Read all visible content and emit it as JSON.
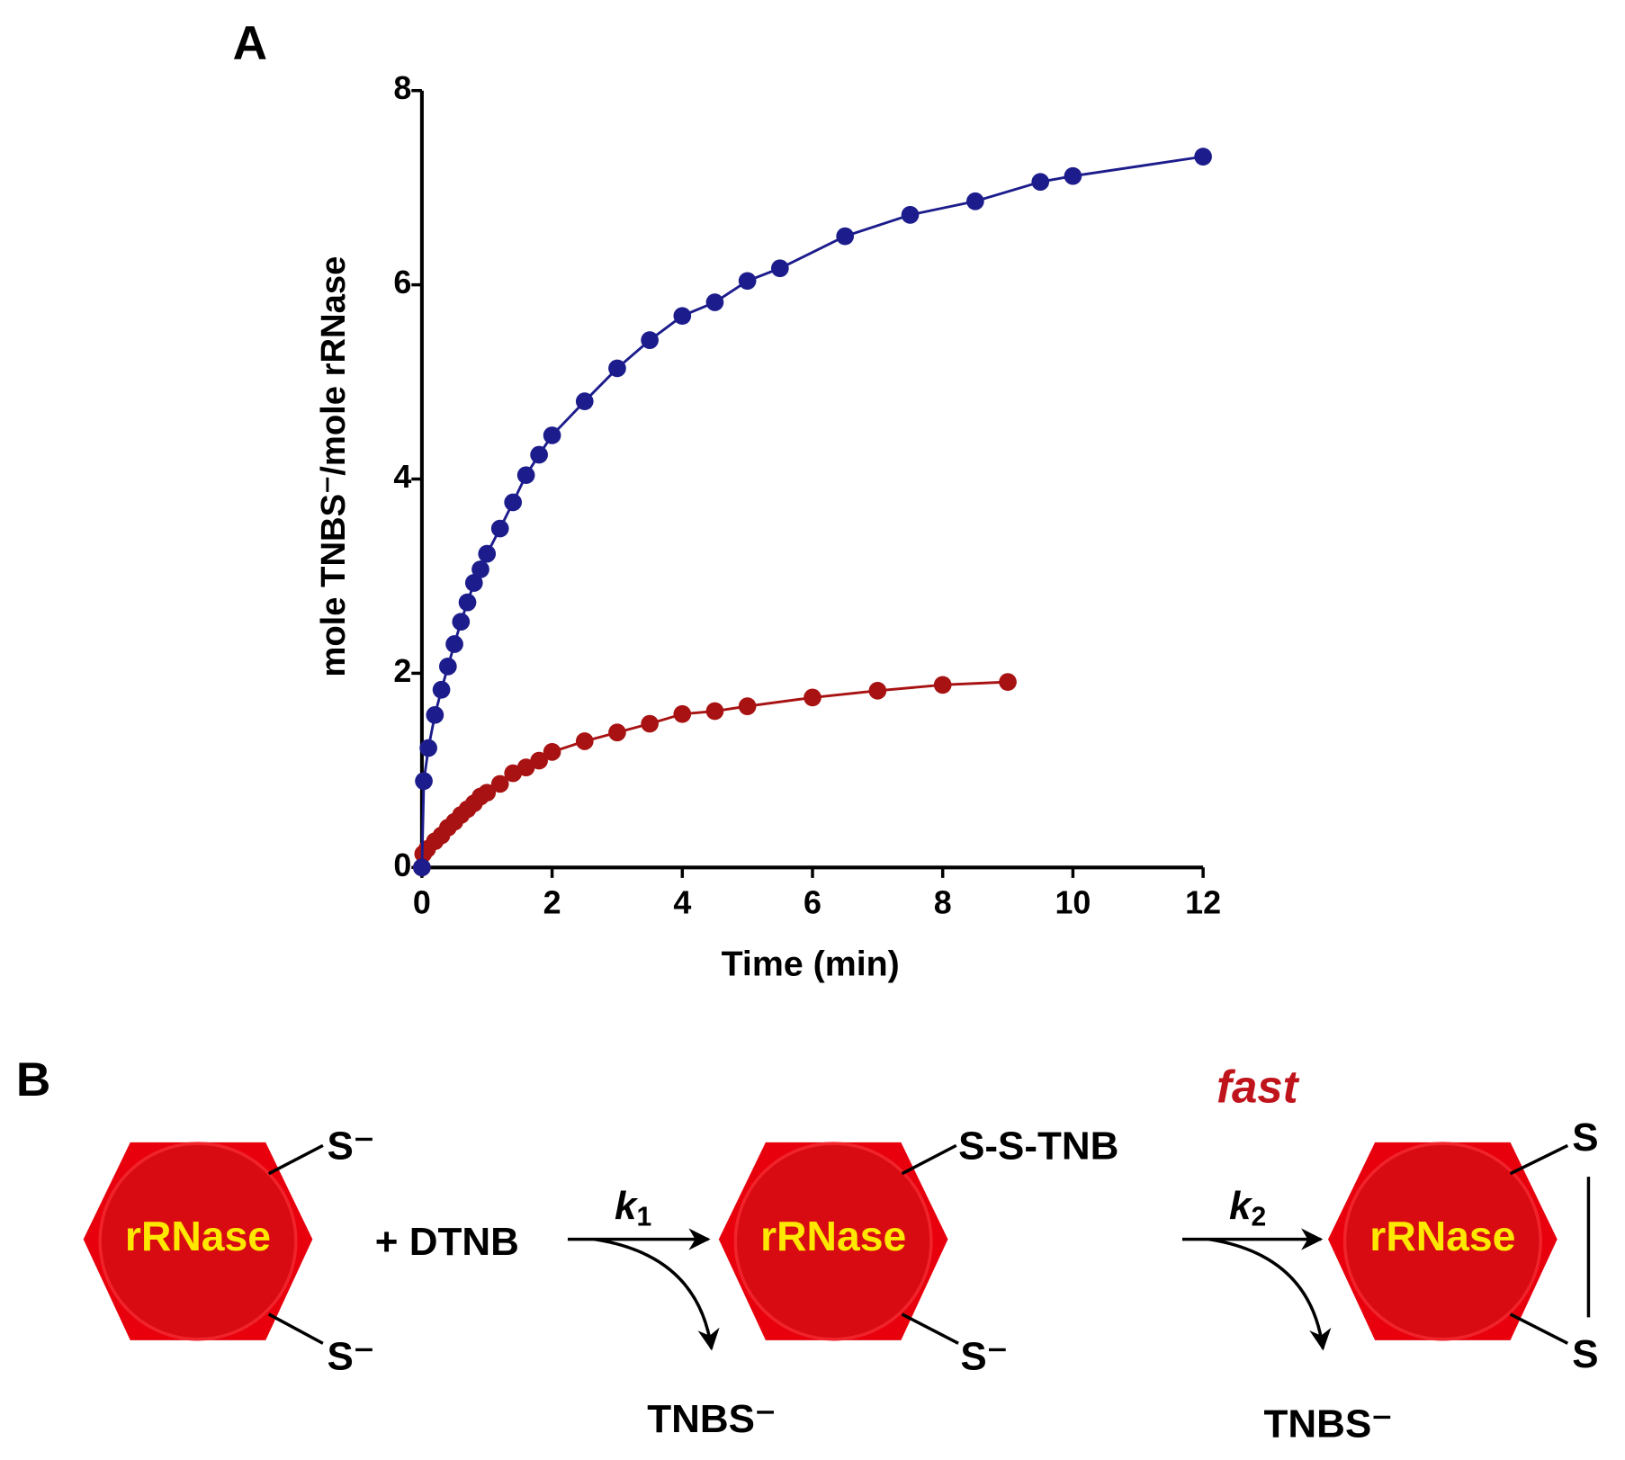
{
  "panel_a_label": "A",
  "chart_data": {
    "type": "line",
    "x_label": "Time (min)",
    "y_label": "mole TNBS⁻/mole rRNase",
    "xlim": [
      0,
      12
    ],
    "xticks": [
      0,
      2,
      4,
      6,
      8,
      10,
      12
    ],
    "ylim": [
      0,
      8
    ],
    "yticks": [
      0,
      2,
      4,
      6,
      8
    ],
    "series": [
      {
        "color": "#1c1c8c",
        "x": [
          0,
          0.03,
          0.1,
          0.2,
          0.3,
          0.4,
          0.5,
          0.6,
          0.7,
          0.8,
          0.9,
          1.0,
          1.2,
          1.4,
          1.6,
          1.8,
          2.0,
          2.5,
          3.0,
          3.5,
          4.0,
          4.5,
          5.0,
          5.5,
          6.5,
          7.5,
          8.5,
          9.5,
          10.0,
          12.0
        ],
        "values": [
          0,
          0.89,
          1.23,
          1.57,
          1.83,
          2.07,
          2.3,
          2.53,
          2.73,
          2.93,
          3.07,
          3.23,
          3.49,
          3.76,
          4.04,
          4.25,
          4.45,
          4.8,
          5.14,
          5.43,
          5.68,
          5.82,
          6.04,
          6.17,
          6.5,
          6.72,
          6.86,
          7.06,
          7.12,
          7.32
        ]
      },
      {
        "color": "#a81212",
        "x": [
          0,
          0.02,
          0.08,
          0.2,
          0.3,
          0.4,
          0.5,
          0.6,
          0.7,
          0.8,
          0.9,
          1.0,
          1.2,
          1.4,
          1.6,
          1.8,
          2.0,
          2.5,
          3.0,
          3.5,
          4.0,
          4.5,
          5.0,
          6.0,
          7.0,
          8.0,
          9.0
        ],
        "values": [
          0,
          0.14,
          0.19,
          0.27,
          0.33,
          0.41,
          0.47,
          0.54,
          0.6,
          0.66,
          0.73,
          0.77,
          0.86,
          0.97,
          1.03,
          1.1,
          1.19,
          1.3,
          1.39,
          1.48,
          1.58,
          1.61,
          1.66,
          1.75,
          1.82,
          1.88,
          1.91
        ]
      }
    ]
  },
  "diagram": {
    "panel_label": "B",
    "fast": "fast",
    "enzymes": [
      "rRNase",
      "rRNase",
      "rRNase"
    ],
    "reagent": "+ DTNB",
    "step1": {
      "symbol": "k",
      "subscript": "1"
    },
    "step2": {
      "symbol": "k",
      "subscript": "2"
    },
    "left_top": "S⁻",
    "left_bottom": "S⁻",
    "middle_top": "S-S-TNB",
    "middle_bottom": "S⁻",
    "right_top": "S",
    "right_bottom": "S",
    "product_1": "TNBS⁻",
    "product_2": "TNBS⁻"
  }
}
